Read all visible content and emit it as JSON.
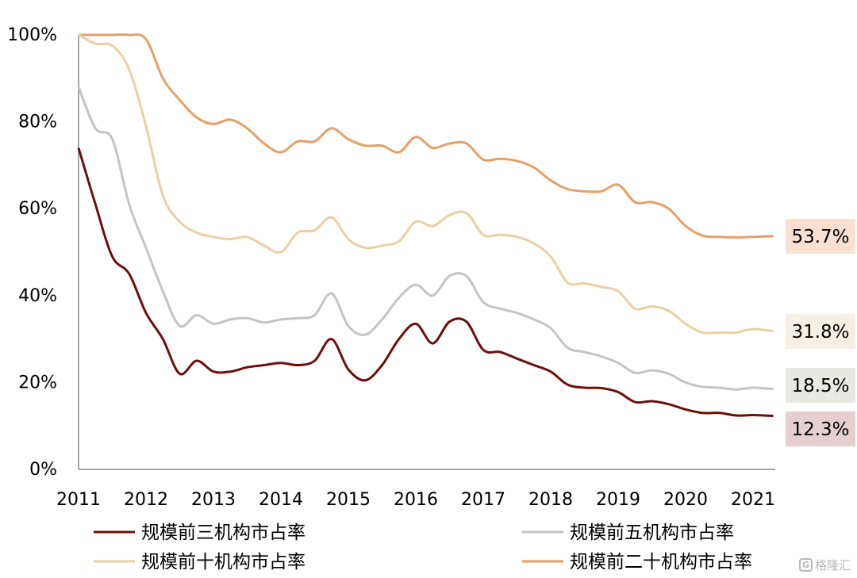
{
  "chart_data": {
    "type": "line",
    "ylim": [
      0,
      100
    ],
    "yticks": [
      "0%",
      "20%",
      "40%",
      "60%",
      "80%",
      "100%"
    ],
    "xticks": [
      "2011",
      "2012",
      "2013",
      "2014",
      "2015",
      "2016",
      "2017",
      "2018",
      "2019",
      "2020",
      "2021"
    ],
    "series": [
      {
        "name": "规模前三机构市占率",
        "color": "#6e0e0a",
        "end_label": "12.3%",
        "badge_color": "#e6cfd0",
        "points": [
          [
            2011.0,
            74
          ],
          [
            2011.25,
            61
          ],
          [
            2011.5,
            49
          ],
          [
            2011.75,
            45
          ],
          [
            2012.0,
            36
          ],
          [
            2012.25,
            30
          ],
          [
            2012.5,
            22
          ],
          [
            2012.75,
            25
          ],
          [
            2013.0,
            22.5
          ],
          [
            2013.25,
            22.5
          ],
          [
            2013.5,
            23.5
          ],
          [
            2013.75,
            24
          ],
          [
            2014.0,
            24.5
          ],
          [
            2014.25,
            24
          ],
          [
            2014.5,
            25
          ],
          [
            2014.75,
            30
          ],
          [
            2015.0,
            23
          ],
          [
            2015.25,
            20.5
          ],
          [
            2015.5,
            24
          ],
          [
            2015.75,
            30
          ],
          [
            2016.0,
            33.5
          ],
          [
            2016.25,
            29
          ],
          [
            2016.5,
            34
          ],
          [
            2016.75,
            34
          ],
          [
            2017.0,
            27.5
          ],
          [
            2017.25,
            27
          ],
          [
            2017.5,
            25.5
          ],
          [
            2017.75,
            24
          ],
          [
            2018.0,
            22.5
          ],
          [
            2018.25,
            19.5
          ],
          [
            2018.5,
            18.8
          ],
          [
            2018.75,
            18.7
          ],
          [
            2019.0,
            17.8
          ],
          [
            2019.25,
            15.5
          ],
          [
            2019.5,
            15.7
          ],
          [
            2019.75,
            15
          ],
          [
            2020.0,
            13.8
          ],
          [
            2020.25,
            13
          ],
          [
            2020.5,
            13
          ],
          [
            2020.75,
            12.4
          ],
          [
            2021.0,
            12.5
          ],
          [
            2021.3,
            12.3
          ]
        ]
      },
      {
        "name": "规模前五机构市占率",
        "color": "#c4c4c4",
        "end_label": "18.5%",
        "badge_color": "#e8e9e3",
        "points": [
          [
            2011.0,
            88
          ],
          [
            2011.25,
            78.5
          ],
          [
            2011.5,
            76
          ],
          [
            2011.75,
            61
          ],
          [
            2012.0,
            51
          ],
          [
            2012.25,
            41
          ],
          [
            2012.5,
            33
          ],
          [
            2012.75,
            35.5
          ],
          [
            2013.0,
            33.5
          ],
          [
            2013.25,
            34.5
          ],
          [
            2013.5,
            34.8
          ],
          [
            2013.75,
            33.8
          ],
          [
            2014.0,
            34.5
          ],
          [
            2014.25,
            34.8
          ],
          [
            2014.5,
            35.5
          ],
          [
            2014.75,
            40.5
          ],
          [
            2015.0,
            33
          ],
          [
            2015.25,
            31
          ],
          [
            2015.5,
            34.5
          ],
          [
            2015.75,
            39.5
          ],
          [
            2016.0,
            42.5
          ],
          [
            2016.25,
            40
          ],
          [
            2016.5,
            44.5
          ],
          [
            2016.75,
            44.5
          ],
          [
            2017.0,
            38.5
          ],
          [
            2017.25,
            37
          ],
          [
            2017.5,
            36
          ],
          [
            2017.75,
            34.5
          ],
          [
            2018.0,
            32.5
          ],
          [
            2018.25,
            28
          ],
          [
            2018.5,
            27
          ],
          [
            2018.75,
            26
          ],
          [
            2019.0,
            24.5
          ],
          [
            2019.25,
            22.2
          ],
          [
            2019.5,
            22.8
          ],
          [
            2019.75,
            22
          ],
          [
            2020.0,
            20
          ],
          [
            2020.25,
            19
          ],
          [
            2020.5,
            18.8
          ],
          [
            2020.75,
            18.4
          ],
          [
            2021.0,
            18.8
          ],
          [
            2021.3,
            18.5
          ]
        ]
      },
      {
        "name": "规模前十机构市占率",
        "color": "#e9cfa6",
        "end_label": "31.8%",
        "badge_color": "#f6efe6",
        "points": [
          [
            2011.0,
            100
          ],
          [
            2011.25,
            98
          ],
          [
            2011.5,
            97.5
          ],
          [
            2011.75,
            92
          ],
          [
            2012.0,
            79
          ],
          [
            2012.25,
            63
          ],
          [
            2012.5,
            57
          ],
          [
            2012.75,
            54.5
          ],
          [
            2013.0,
            53.5
          ],
          [
            2013.25,
            53
          ],
          [
            2013.5,
            53.5
          ],
          [
            2013.75,
            51.5
          ],
          [
            2014.0,
            50
          ],
          [
            2014.25,
            54.5
          ],
          [
            2014.5,
            55
          ],
          [
            2014.75,
            58
          ],
          [
            2015.0,
            53
          ],
          [
            2015.25,
            51
          ],
          [
            2015.5,
            51.5
          ],
          [
            2015.75,
            52.5
          ],
          [
            2016.0,
            57
          ],
          [
            2016.25,
            56
          ],
          [
            2016.5,
            58.5
          ],
          [
            2016.75,
            59
          ],
          [
            2017.0,
            54
          ],
          [
            2017.25,
            54
          ],
          [
            2017.5,
            53.5
          ],
          [
            2017.75,
            52
          ],
          [
            2018.0,
            49
          ],
          [
            2018.25,
            43
          ],
          [
            2018.5,
            42.8
          ],
          [
            2018.75,
            42
          ],
          [
            2019.0,
            41
          ],
          [
            2019.25,
            37
          ],
          [
            2019.5,
            37.5
          ],
          [
            2019.75,
            36.5
          ],
          [
            2020.0,
            33.5
          ],
          [
            2020.25,
            31.5
          ],
          [
            2020.5,
            31.5
          ],
          [
            2020.75,
            31.5
          ],
          [
            2021.0,
            32.3
          ],
          [
            2021.3,
            31.8
          ]
        ]
      },
      {
        "name": "规模前二十机构市占率",
        "color": "#e6a066",
        "end_label": "53.7%",
        "badge_color": "#fae0d1",
        "points": [
          [
            2011.0,
            100
          ],
          [
            2011.25,
            100
          ],
          [
            2011.5,
            100
          ],
          [
            2011.75,
            100
          ],
          [
            2012.0,
            99
          ],
          [
            2012.25,
            90
          ],
          [
            2012.5,
            85
          ],
          [
            2012.75,
            81
          ],
          [
            2013.0,
            79.5
          ],
          [
            2013.25,
            80.5
          ],
          [
            2013.5,
            78.5
          ],
          [
            2013.75,
            75
          ],
          [
            2014.0,
            73
          ],
          [
            2014.25,
            75.5
          ],
          [
            2014.5,
            75.5
          ],
          [
            2014.75,
            78.5
          ],
          [
            2015.0,
            76
          ],
          [
            2015.25,
            74.5
          ],
          [
            2015.5,
            74.5
          ],
          [
            2015.75,
            73
          ],
          [
            2016.0,
            76.5
          ],
          [
            2016.25,
            74
          ],
          [
            2016.5,
            75
          ],
          [
            2016.75,
            75
          ],
          [
            2017.0,
            71.3
          ],
          [
            2017.25,
            71.5
          ],
          [
            2017.5,
            71
          ],
          [
            2017.75,
            69.5
          ],
          [
            2018.0,
            66.5
          ],
          [
            2018.25,
            64.5
          ],
          [
            2018.5,
            64
          ],
          [
            2018.75,
            64
          ],
          [
            2019.0,
            65.5
          ],
          [
            2019.25,
            61.5
          ],
          [
            2019.5,
            61.5
          ],
          [
            2019.75,
            60
          ],
          [
            2020.0,
            56
          ],
          [
            2020.25,
            53.8
          ],
          [
            2020.5,
            53.5
          ],
          [
            2020.75,
            53.4
          ],
          [
            2021.0,
            53.5
          ],
          [
            2021.3,
            53.7
          ]
        ]
      }
    ]
  },
  "legend": [
    {
      "label": "规模前三机构市占率",
      "color": "#6e0e0a"
    },
    {
      "label": "规模前五机构市占率",
      "color": "#c4c4c4"
    },
    {
      "label": "规模前十机构市占率",
      "color": "#e9cfa6"
    },
    {
      "label": "规模前二十机构市占率",
      "color": "#e6a066"
    }
  ],
  "watermark": {
    "icon": "gelonghui-logo-icon",
    "text": "格隆汇"
  }
}
